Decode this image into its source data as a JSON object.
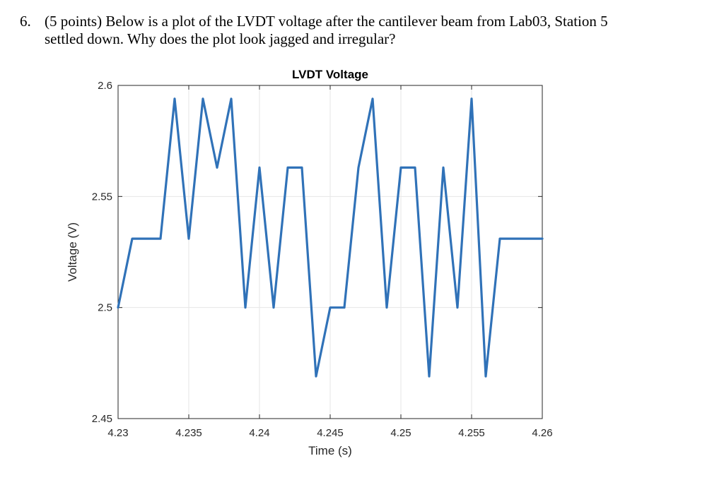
{
  "question": {
    "number": "6.",
    "line1": "(5 points) Below is a plot of the LVDT voltage after the cantilever beam from Lab03, Station 5",
    "line2": "settled down. Why does the plot look jagged and irregular?"
  },
  "chart_data": {
    "type": "line",
    "title": "LVDT Voltage",
    "xlabel": "Time (s)",
    "ylabel": "Voltage (V)",
    "xlim": [
      4.23,
      4.26
    ],
    "ylim": [
      2.45,
      2.6
    ],
    "xticks": [
      "4.23",
      "4.235",
      "4.24",
      "4.245",
      "4.25",
      "4.255",
      "4.26"
    ],
    "yticks": [
      "2.45",
      "2.5",
      "2.55",
      "2.6"
    ],
    "grid": true,
    "colors": {
      "line": "#3072b8",
      "grid": "#e6e6e6",
      "axis": "#262626"
    },
    "series": [
      {
        "name": "",
        "x": [
          4.23,
          4.231,
          4.232,
          4.233,
          4.234,
          4.235,
          4.236,
          4.237,
          4.238,
          4.239,
          4.24,
          4.241,
          4.242,
          4.243,
          4.244,
          4.245,
          4.246,
          4.247,
          4.248,
          4.249,
          4.25,
          4.251,
          4.252,
          4.253,
          4.254,
          4.255,
          4.256,
          4.257,
          4.258,
          4.259,
          4.26
        ],
        "values": [
          2.5,
          2.531,
          2.531,
          2.531,
          2.594,
          2.531,
          2.594,
          2.563,
          2.594,
          2.5,
          2.563,
          2.5,
          2.563,
          2.563,
          2.469,
          2.5,
          2.5,
          2.563,
          2.594,
          2.5,
          2.563,
          2.563,
          2.469,
          2.563,
          2.5,
          2.594,
          2.469,
          2.531,
          2.531,
          2.531,
          2.531
        ]
      }
    ]
  }
}
